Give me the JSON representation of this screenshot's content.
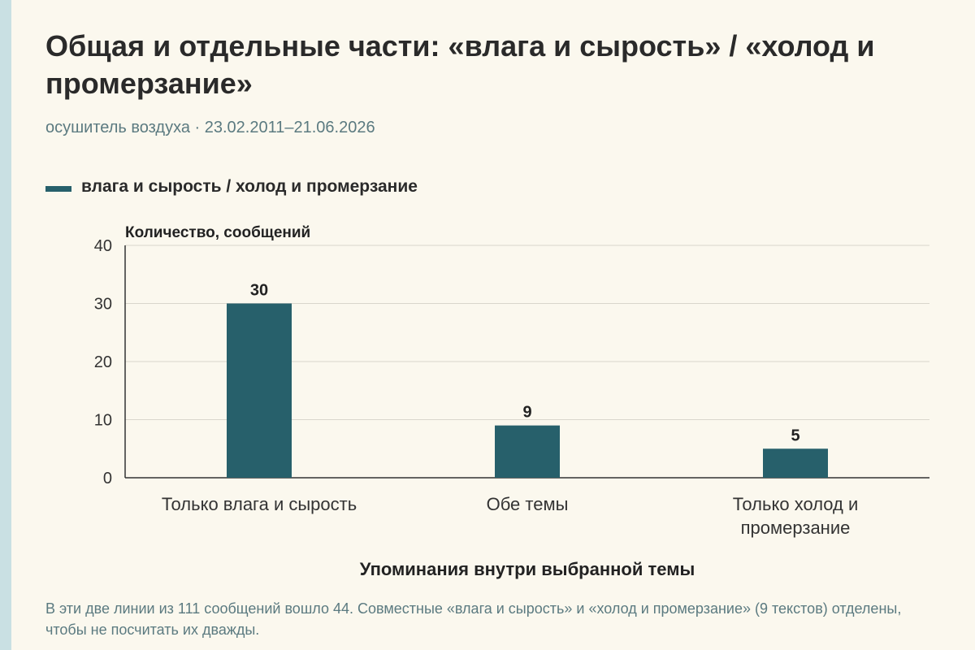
{
  "title": "Общая и отдельные части: «влага и сырость» / «холод и промерзание»",
  "subtitle": "осушитель воздуха · 23.02.2011–21.06.2026",
  "legend": {
    "label": "влага и сырость / холод и промерзание"
  },
  "note": "В эти две линии из 111 сообщений вошло 44. Совместные «влага и сырость» и «холод и промерзание» (9 текстов) отделены, чтобы не посчитать их дважды.",
  "colors": {
    "bar": "#27606b",
    "accent_stripe": "#c9e0e3",
    "background": "#fbf8ee"
  },
  "chart_data": {
    "type": "bar",
    "categories": [
      "Только влага и сырость",
      "Обе темы",
      "Только холод и промерзание"
    ],
    "category_lines": [
      [
        "Только влага и сырость"
      ],
      [
        "Обе темы"
      ],
      [
        "Только холод и",
        "промерзание"
      ]
    ],
    "series": [
      {
        "name": "влага и сырость / холод и промерзание",
        "values": [
          30,
          9,
          5
        ]
      }
    ],
    "ylabel": "Количество, сообщений",
    "xlabel": "Упоминания внутри выбранной темы",
    "ylim": [
      0,
      40
    ],
    "yticks": [
      0,
      10,
      20,
      30,
      40
    ],
    "grid": true,
    "data_labels": true,
    "legend_position": "top-left"
  }
}
